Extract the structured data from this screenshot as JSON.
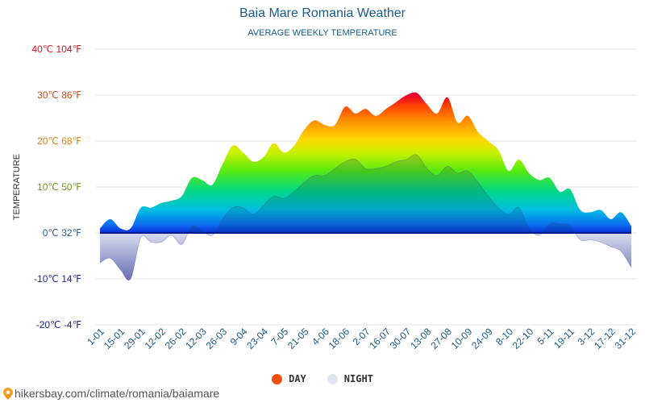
{
  "header": {
    "title": "Baia Mare Romania Weather",
    "subtitle": "AVERAGE WEEKLY TEMPERATURE"
  },
  "footer": {
    "url": "hikersbay.com/climate/romania/baiamare"
  },
  "legend": {
    "day_label": "DAY",
    "night_label": "NIGHT"
  },
  "colors": {
    "day_dot": "#f04e0e",
    "night_dot": "#dde6f2",
    "axis_text": "#1a5a8c",
    "night_fill": "#9aa2cc"
  },
  "chart_data": {
    "type": "area",
    "title": "Baia Mare Romania Weather",
    "subtitle": "AVERAGE WEEKLY TEMPERATURE",
    "ylabel": "TEMPERATURE",
    "xlabel": "",
    "ylim": [
      -20,
      40
    ],
    "grid": true,
    "legend_position": "bottom-center",
    "yticks": [
      {
        "value": 40,
        "label": "40℃ 104℉",
        "color": "#e0101c"
      },
      {
        "value": 30,
        "label": "30℃ 86℉",
        "color": "#e2460c"
      },
      {
        "value": 20,
        "label": "20℃ 68℉",
        "color": "#e87d0c"
      },
      {
        "value": 10,
        "label": "10℃ 50℉",
        "color": "#6e9c1c"
      },
      {
        "value": 0,
        "label": "0℃ 32℉",
        "color": "#2a5fa8"
      },
      {
        "value": -10,
        "label": "-10℃ 14℉",
        "color": "#2323c0"
      },
      {
        "value": -20,
        "label": "-20℃ -4℉",
        "color": "#20209a"
      }
    ],
    "xtick_labels": [
      "1-01",
      "15-01",
      "29-01",
      "12-02",
      "26-02",
      "12-03",
      "26-03",
      "9-04",
      "23-04",
      "7-05",
      "21-05",
      "4-06",
      "18-06",
      "2-07",
      "16-07",
      "30-07",
      "13-08",
      "27-08",
      "10-09",
      "24-09",
      "8-10",
      "22-10",
      "5-11",
      "19-11",
      "3-12",
      "17-12",
      "31-12"
    ],
    "weeks": 53,
    "series": [
      {
        "name": "DAY",
        "values": [
          1,
          3,
          1,
          1,
          5.5,
          5.5,
          6.5,
          7,
          8,
          12,
          11.5,
          10.5,
          15,
          19,
          17.5,
          15.5,
          16.5,
          19.5,
          17.5,
          19,
          22.5,
          24.5,
          23.5,
          23.5,
          27.5,
          26,
          27,
          25.5,
          27,
          28.5,
          30,
          30.5,
          28,
          26,
          29.5,
          24,
          25.5,
          22,
          20,
          18,
          13.5,
          16,
          13,
          11.5,
          12,
          9,
          9.5,
          5,
          4.5,
          5,
          3,
          4.5,
          1.5
        ]
      },
      {
        "name": "NIGHT",
        "values": [
          -6.5,
          -5.5,
          -8,
          -10,
          -1,
          -2,
          -2,
          -0.5,
          -2.5,
          1.5,
          0.5,
          -0.5,
          3,
          5.5,
          5.5,
          4,
          6,
          8,
          7.5,
          9,
          11,
          12.5,
          12.5,
          14,
          15.5,
          16,
          14,
          14,
          14.5,
          15.5,
          16,
          17,
          14,
          12.5,
          14.5,
          13,
          13.5,
          11,
          8,
          5.5,
          4,
          5.5,
          1,
          -0.5,
          2,
          2,
          1.5,
          -1.5,
          -1.5,
          -2,
          -3,
          -4,
          -7.5
        ]
      }
    ]
  }
}
